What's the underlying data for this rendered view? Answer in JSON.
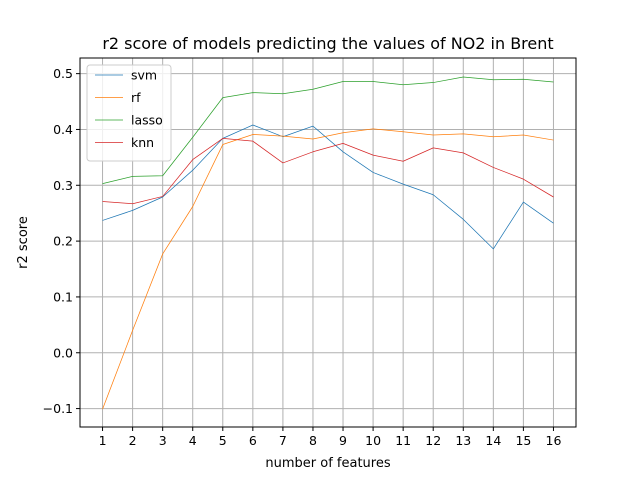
{
  "chart_data": {
    "type": "line",
    "title": "r2 score of models predicting the values of NO2 in Brent",
    "xlabel": "number of features",
    "ylabel": "r2 score",
    "x": [
      1,
      2,
      3,
      4,
      5,
      6,
      7,
      8,
      9,
      10,
      11,
      12,
      13,
      14,
      15,
      16
    ],
    "xticks": [
      "1",
      "2",
      "3",
      "4",
      "5",
      "6",
      "7",
      "8",
      "9",
      "10",
      "11",
      "12",
      "13",
      "14",
      "15",
      "16"
    ],
    "xlim": [
      0.25,
      16.75
    ],
    "yticks": [
      -0.1,
      0.0,
      0.1,
      0.2,
      0.3,
      0.4,
      0.5
    ],
    "ytick_labels": [
      "−0.1",
      "0.0",
      "0.1",
      "0.2",
      "0.3",
      "0.4",
      "0.5"
    ],
    "ylim": [
      -0.133,
      0.528
    ],
    "grid": true,
    "legend_position": "top-left",
    "series": [
      {
        "name": "svm",
        "color": "#1f77b4",
        "values": [
          0.237,
          0.255,
          0.279,
          0.327,
          0.384,
          0.408,
          0.387,
          0.406,
          0.36,
          0.323,
          0.302,
          0.283,
          0.239,
          0.186,
          0.27,
          0.232
        ]
      },
      {
        "name": "rf",
        "color": "#ff7f0e",
        "values": [
          -0.101,
          0.04,
          0.177,
          0.262,
          0.373,
          0.391,
          0.388,
          0.383,
          0.394,
          0.401,
          0.396,
          0.39,
          0.392,
          0.387,
          0.39,
          0.381
        ]
      },
      {
        "name": "lasso",
        "color": "#2ca02c",
        "values": [
          0.303,
          0.316,
          0.317,
          0.386,
          0.457,
          0.466,
          0.464,
          0.472,
          0.486,
          0.486,
          0.48,
          0.484,
          0.494,
          0.489,
          0.49,
          0.485
        ]
      },
      {
        "name": "knn",
        "color": "#d62728",
        "values": [
          0.271,
          0.267,
          0.28,
          0.346,
          0.384,
          0.379,
          0.34,
          0.36,
          0.375,
          0.354,
          0.343,
          0.367,
          0.358,
          0.332,
          0.311,
          0.279
        ]
      }
    ]
  }
}
